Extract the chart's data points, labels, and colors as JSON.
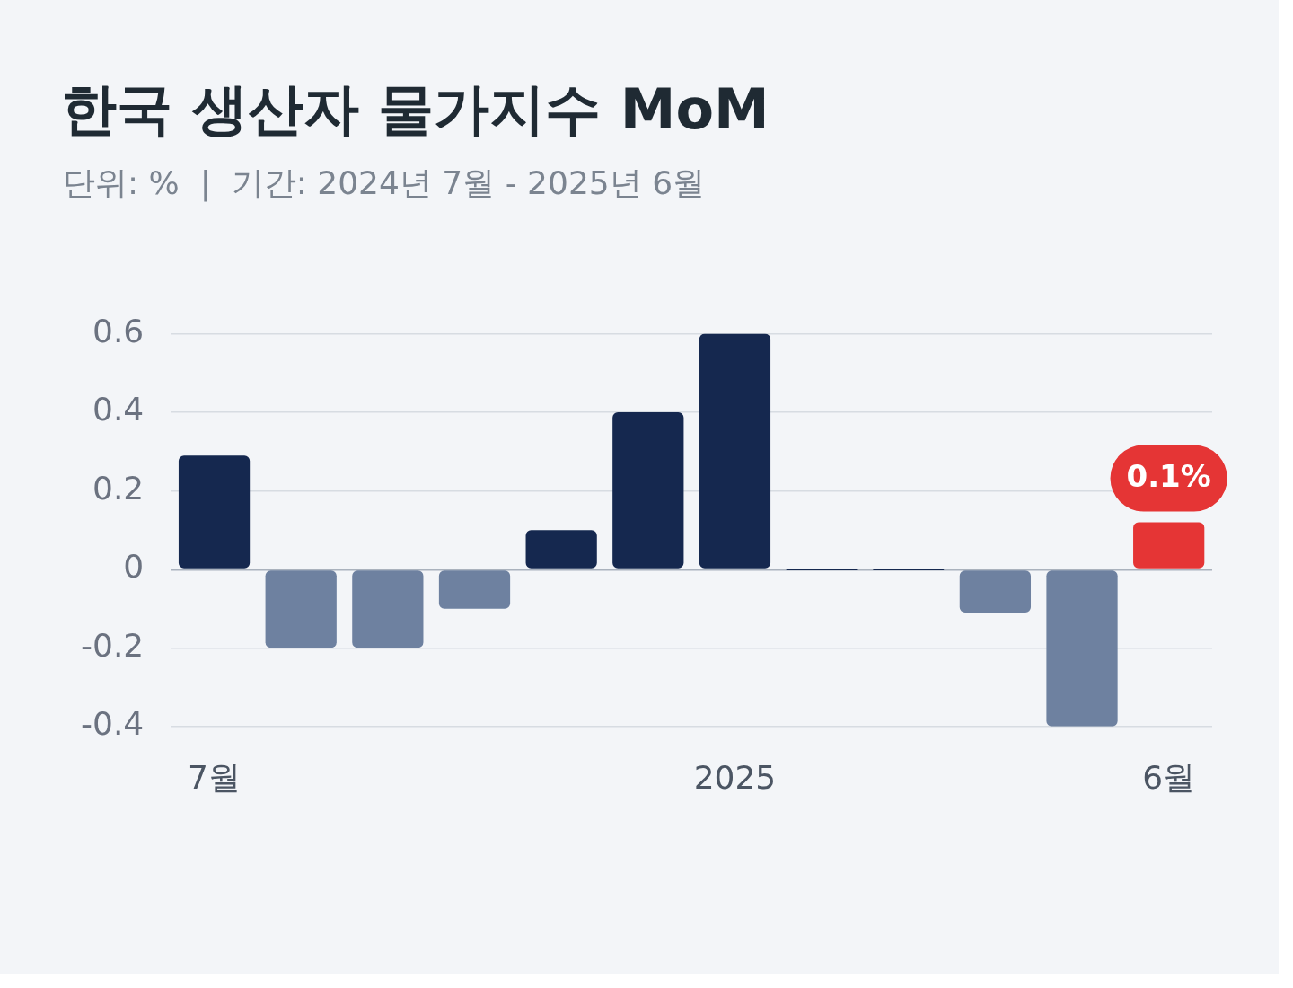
{
  "chart_data": {
    "type": "bar",
    "title": "한국 생산자 물가지수 MoM",
    "subtitle": "단위: %  |  기간: 2024년 7월 - 2025년 6월",
    "categories": [
      "7월",
      null,
      null,
      null,
      null,
      null,
      "2025",
      null,
      null,
      null,
      null,
      "6월"
    ],
    "values": [
      0.29,
      -0.2,
      -0.2,
      -0.1,
      0.1,
      0.4,
      0.6,
      0,
      0,
      -0.11,
      -0.4,
      0.12
    ],
    "colors": [
      "#15284f",
      "#6e81a0",
      "#6e81a0",
      "#6e81a0",
      "#15284f",
      "#15284f",
      "#15284f",
      "#15284f",
      "#15284f",
      "#6e81a0",
      "#6e81a0",
      "#e53535"
    ],
    "value_labels": [
      null,
      null,
      null,
      null,
      null,
      null,
      null,
      null,
      null,
      null,
      null,
      "0.1%"
    ],
    "ylim": [
      -0.4,
      0.6
    ],
    "yticks": [
      -0.4,
      -0.2,
      0,
      0.2,
      0.4,
      0.6
    ],
    "grid": "y",
    "legend": false
  }
}
